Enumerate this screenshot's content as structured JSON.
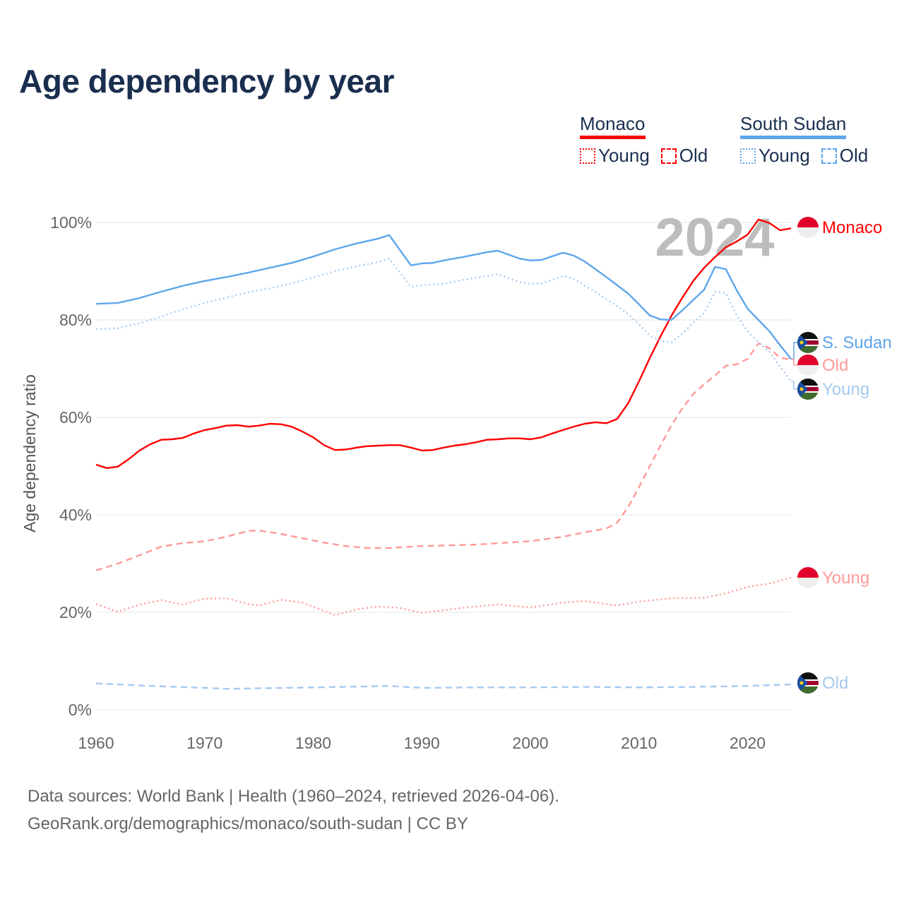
{
  "chart_data": {
    "type": "line",
    "title": "Age dependency by year",
    "ylabel": "Age dependency ratio",
    "xlabel": "",
    "xlim": [
      1960,
      2024
    ],
    "ylim": [
      0,
      100
    ],
    "x_ticks": [
      "1960",
      "1970",
      "1980",
      "1990",
      "2000",
      "2010",
      "2020"
    ],
    "y_ticks": [
      "0%",
      "20%",
      "40%",
      "60%",
      "80%",
      "100%"
    ],
    "y_tick_values": [
      0,
      20,
      40,
      60,
      80,
      100
    ],
    "x_tick_values": [
      1960,
      1970,
      1980,
      1990,
      2000,
      2010,
      2020
    ],
    "year_watermark": "2024",
    "grid": true,
    "legend": {
      "placement": "top-right",
      "groups": [
        {
          "name": "Monaco",
          "color": "#ff0000",
          "items": [
            {
              "label": "Young",
              "style": "dotted"
            },
            {
              "label": "Old",
              "style": "dashed"
            }
          ]
        },
        {
          "name": "South Sudan",
          "color": "#5ea6ea",
          "items": [
            {
              "label": "Young",
              "style": "dotted"
            },
            {
              "label": "Old",
              "style": "dashed"
            }
          ]
        }
      ]
    },
    "series": [
      {
        "name": "Monaco total",
        "end_label": "Monaco",
        "flag": "monaco",
        "color": "#ff0000",
        "dash": "solid",
        "points": [
          [
            1960,
            50.3
          ],
          [
            1961,
            49.6
          ],
          [
            1962,
            49.9
          ],
          [
            1963,
            51.4
          ],
          [
            1964,
            53.2
          ],
          [
            1965,
            54.5
          ],
          [
            1966,
            55.4
          ],
          [
            1967,
            55.5
          ],
          [
            1968,
            55.8
          ],
          [
            1969,
            56.7
          ],
          [
            1970,
            57.4
          ],
          [
            1971,
            57.8
          ],
          [
            1972,
            58.3
          ],
          [
            1973,
            58.4
          ],
          [
            1974,
            58.1
          ],
          [
            1975,
            58.3
          ],
          [
            1976,
            58.7
          ],
          [
            1977,
            58.6
          ],
          [
            1978,
            58.1
          ],
          [
            1979,
            57.1
          ],
          [
            1980,
            55.9
          ],
          [
            1981,
            54.3
          ],
          [
            1982,
            53.3
          ],
          [
            1983,
            53.4
          ],
          [
            1984,
            53.8
          ],
          [
            1985,
            54.1
          ],
          [
            1986,
            54.2
          ],
          [
            1987,
            54.3
          ],
          [
            1988,
            54.3
          ],
          [
            1989,
            53.8
          ],
          [
            1990,
            53.2
          ],
          [
            1991,
            53.3
          ],
          [
            1992,
            53.8
          ],
          [
            1993,
            54.2
          ],
          [
            1994,
            54.5
          ],
          [
            1995,
            54.9
          ],
          [
            1996,
            55.4
          ],
          [
            1997,
            55.5
          ],
          [
            1998,
            55.7
          ],
          [
            1999,
            55.7
          ],
          [
            2000,
            55.5
          ],
          [
            2001,
            55.9
          ],
          [
            2002,
            56.7
          ],
          [
            2003,
            57.4
          ],
          [
            2004,
            58.1
          ],
          [
            2005,
            58.7
          ],
          [
            2006,
            59.0
          ],
          [
            2007,
            58.8
          ],
          [
            2008,
            59.7
          ],
          [
            2009,
            62.9
          ],
          [
            2010,
            67.4
          ],
          [
            2011,
            72.2
          ],
          [
            2012,
            76.7
          ],
          [
            2013,
            80.9
          ],
          [
            2014,
            84.6
          ],
          [
            2015,
            88.0
          ],
          [
            2016,
            90.7
          ],
          [
            2017,
            92.9
          ],
          [
            2018,
            94.9
          ],
          [
            2019,
            96.1
          ],
          [
            2020,
            97.5
          ],
          [
            2021,
            100.6
          ],
          [
            2022,
            99.9
          ],
          [
            2023,
            98.4
          ],
          [
            2024,
            98.8
          ]
        ]
      },
      {
        "name": "South Sudan total",
        "end_label": "S. Sudan",
        "flag": "south-sudan",
        "color": "#5ea6ea",
        "dash": "solid",
        "points": [
          [
            1960,
            83.3
          ],
          [
            1962,
            83.5
          ],
          [
            1964,
            84.5
          ],
          [
            1966,
            85.8
          ],
          [
            1968,
            87.0
          ],
          [
            1970,
            88.0
          ],
          [
            1972,
            88.8
          ],
          [
            1974,
            89.7
          ],
          [
            1976,
            90.7
          ],
          [
            1978,
            91.7
          ],
          [
            1980,
            93.0
          ],
          [
            1982,
            94.5
          ],
          [
            1984,
            95.7
          ],
          [
            1986,
            96.7
          ],
          [
            1987,
            97.4
          ],
          [
            1988,
            94.3
          ],
          [
            1989,
            91.2
          ],
          [
            1990,
            91.6
          ],
          [
            1991,
            91.7
          ],
          [
            1992,
            92.2
          ],
          [
            1994,
            93.0
          ],
          [
            1996,
            93.9
          ],
          [
            1997,
            94.2
          ],
          [
            1999,
            92.6
          ],
          [
            2000,
            92.2
          ],
          [
            2001,
            92.3
          ],
          [
            2003,
            93.8
          ],
          [
            2004,
            93.2
          ],
          [
            2005,
            92.0
          ],
          [
            2007,
            88.8
          ],
          [
            2008,
            87.1
          ],
          [
            2009,
            85.4
          ],
          [
            2010,
            83.2
          ],
          [
            2011,
            80.9
          ],
          [
            2012,
            80.1
          ],
          [
            2013,
            80.0
          ],
          [
            2014,
            82.0
          ],
          [
            2015,
            84.1
          ],
          [
            2016,
            86.2
          ],
          [
            2017,
            90.9
          ],
          [
            2018,
            90.4
          ],
          [
            2019,
            86.1
          ],
          [
            2020,
            82.3
          ],
          [
            2021,
            80.0
          ],
          [
            2022,
            77.7
          ],
          [
            2023,
            74.8
          ],
          [
            2024,
            72.0
          ]
        ]
      },
      {
        "name": "Monaco old",
        "end_label": "Old",
        "flag": "monaco",
        "color": "#ff9999",
        "dash": "dashed",
        "points": [
          [
            1960,
            28.6
          ],
          [
            1962,
            30.0
          ],
          [
            1964,
            31.7
          ],
          [
            1966,
            33.5
          ],
          [
            1968,
            34.2
          ],
          [
            1970,
            34.6
          ],
          [
            1972,
            35.5
          ],
          [
            1974,
            36.7
          ],
          [
            1975,
            36.8
          ],
          [
            1977,
            36.1
          ],
          [
            1979,
            35.2
          ],
          [
            1981,
            34.3
          ],
          [
            1983,
            33.6
          ],
          [
            1985,
            33.2
          ],
          [
            1987,
            33.2
          ],
          [
            1990,
            33.6
          ],
          [
            1995,
            33.9
          ],
          [
            2000,
            34.6
          ],
          [
            2003,
            35.5
          ],
          [
            2005,
            36.4
          ],
          [
            2007,
            37.2
          ],
          [
            2008,
            38.4
          ],
          [
            2009,
            41.6
          ],
          [
            2010,
            45.7
          ],
          [
            2011,
            50.0
          ],
          [
            2012,
            54.3
          ],
          [
            2013,
            58.4
          ],
          [
            2014,
            61.9
          ],
          [
            2015,
            64.8
          ],
          [
            2016,
            66.8
          ],
          [
            2017,
            68.6
          ],
          [
            2018,
            70.6
          ],
          [
            2019,
            70.9
          ],
          [
            2020,
            72.0
          ],
          [
            2021,
            75.2
          ],
          [
            2022,
            74.2
          ],
          [
            2023,
            72.2
          ],
          [
            2024,
            71.9
          ]
        ]
      },
      {
        "name": "South Sudan young",
        "end_label": "Young",
        "flag": "south-sudan",
        "color": "#a6c9f0",
        "dash": "dotted",
        "points": [
          [
            1960,
            78.1
          ],
          [
            1962,
            78.3
          ],
          [
            1964,
            79.3
          ],
          [
            1966,
            80.7
          ],
          [
            1968,
            82.2
          ],
          [
            1970,
            83.5
          ],
          [
            1972,
            84.6
          ],
          [
            1974,
            85.7
          ],
          [
            1976,
            86.5
          ],
          [
            1978,
            87.5
          ],
          [
            1980,
            88.7
          ],
          [
            1982,
            90.0
          ],
          [
            1984,
            91.0
          ],
          [
            1986,
            91.9
          ],
          [
            1987,
            92.6
          ],
          [
            1988,
            89.7
          ],
          [
            1989,
            86.8
          ],
          [
            1990,
            87.1
          ],
          [
            1992,
            87.4
          ],
          [
            1994,
            88.3
          ],
          [
            1996,
            89.0
          ],
          [
            1997,
            89.4
          ],
          [
            1999,
            87.8
          ],
          [
            2000,
            87.4
          ],
          [
            2001,
            87.5
          ],
          [
            2003,
            89.0
          ],
          [
            2004,
            88.4
          ],
          [
            2006,
            85.7
          ],
          [
            2008,
            82.8
          ],
          [
            2009,
            81.2
          ],
          [
            2010,
            79.1
          ],
          [
            2011,
            76.8
          ],
          [
            2012,
            75.7
          ],
          [
            2013,
            75.4
          ],
          [
            2014,
            77.2
          ],
          [
            2015,
            79.4
          ],
          [
            2016,
            81.4
          ],
          [
            2017,
            85.8
          ],
          [
            2018,
            85.5
          ],
          [
            2019,
            80.9
          ],
          [
            2020,
            77.7
          ],
          [
            2021,
            75.4
          ],
          [
            2022,
            73.5
          ],
          [
            2023,
            70.4
          ],
          [
            2024,
            67.4
          ]
        ]
      },
      {
        "name": "Monaco young",
        "end_label": "Young",
        "flag": "monaco",
        "color": "#ff9999",
        "dash": "dotted",
        "points": [
          [
            1960,
            21.7
          ],
          [
            1962,
            20.1
          ],
          [
            1964,
            21.6
          ],
          [
            1966,
            22.5
          ],
          [
            1968,
            21.6
          ],
          [
            1970,
            22.8
          ],
          [
            1972,
            22.9
          ],
          [
            1974,
            21.7
          ],
          [
            1975,
            21.4
          ],
          [
            1977,
            22.6
          ],
          [
            1979,
            22.0
          ],
          [
            1981,
            20.3
          ],
          [
            1982,
            19.4
          ],
          [
            1984,
            20.6
          ],
          [
            1986,
            21.2
          ],
          [
            1988,
            20.9
          ],
          [
            1990,
            19.9
          ],
          [
            1992,
            20.4
          ],
          [
            1994,
            21.0
          ],
          [
            1997,
            21.6
          ],
          [
            2000,
            21.0
          ],
          [
            2003,
            22.0
          ],
          [
            2005,
            22.3
          ],
          [
            2008,
            21.4
          ],
          [
            2010,
            22.2
          ],
          [
            2013,
            22.9
          ],
          [
            2016,
            23.0
          ],
          [
            2018,
            23.9
          ],
          [
            2020,
            25.2
          ],
          [
            2022,
            25.9
          ],
          [
            2024,
            27.1
          ]
        ]
      },
      {
        "name": "South Sudan old",
        "end_label": "Old",
        "flag": "south-sudan",
        "color": "#a6c9f0",
        "dash": "dashed",
        "points": [
          [
            1960,
            5.4
          ],
          [
            1965,
            4.9
          ],
          [
            1970,
            4.5
          ],
          [
            1972,
            4.3
          ],
          [
            1975,
            4.4
          ],
          [
            1980,
            4.6
          ],
          [
            1985,
            4.8
          ],
          [
            1987,
            4.9
          ],
          [
            1990,
            4.5
          ],
          [
            1995,
            4.6
          ],
          [
            2000,
            4.6
          ],
          [
            2005,
            4.7
          ],
          [
            2010,
            4.6
          ],
          [
            2015,
            4.7
          ],
          [
            2020,
            4.9
          ],
          [
            2024,
            5.2
          ]
        ]
      }
    ]
  },
  "footer": {
    "line1": "Data sources: World Bank | Health (1960–2024, retrieved 2026-04-06).",
    "line2": "GeoRank.org/demographics/monaco/south-sudan | CC BY"
  }
}
